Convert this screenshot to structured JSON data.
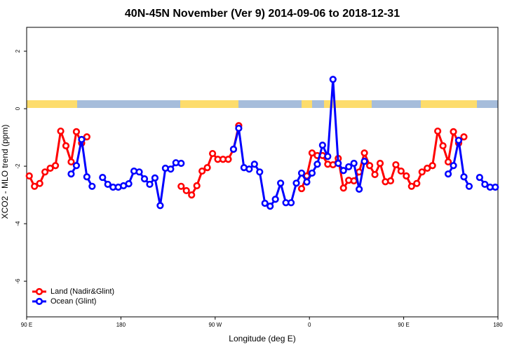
{
  "chart_data": {
    "type": "line",
    "title": "40N-45N November (Ver 9)   2014-09-06 to 2018-12-31",
    "x_label": "Longitude (deg E)",
    "y_label": "XCO2 - MLO trend (ppm)",
    "xlim": [
      90,
      540
    ],
    "ylim": [
      -7.24,
      2.83
    ],
    "xticks": [
      {
        "value": 90,
        "label": "90 E"
      },
      {
        "value": 180,
        "label": "180"
      },
      {
        "value": 270,
        "label": "90 W"
      },
      {
        "value": 360,
        "label": "0"
      },
      {
        "value": 450,
        "label": "90 E"
      },
      {
        "value": 540,
        "label": "180"
      }
    ],
    "yticks": [
      -6,
      -4,
      -2,
      0,
      2
    ],
    "legend": "bottom-left",
    "series": [
      {
        "name": "Land (Nadir&Glint)",
        "color": "#ff0000",
        "x": [
          92.5,
          97.5,
          102.5,
          107.5,
          112.5,
          117.5,
          122.5,
          127.5,
          132.5,
          137.5,
          142.5,
          147.5,
          152.5,
          237.5,
          242.5,
          247.5,
          252.5,
          257.5,
          262.5,
          267.5,
          272.5,
          277.5,
          282.5,
          287.5,
          292.5,
          297.5,
          352.5,
          357.5,
          362.5,
          367.5,
          372.5,
          377.5,
          382.5,
          387.5,
          392.5,
          397.5,
          402.5,
          407.5,
          412.5,
          417.5,
          422.5,
          427.5,
          432.5,
          437.5,
          442.5,
          447.5,
          452.5,
          457.5,
          462.5,
          467.5,
          472.5,
          477.5,
          482.5,
          487.5,
          492.5,
          497.5,
          502.5,
          507.5
        ],
        "values": [
          -2.34,
          -2.7,
          -2.6,
          -2.2,
          -2.07,
          -1.98,
          -0.78,
          -1.29,
          -1.85,
          -0.8,
          -1.2,
          -0.98,
          null,
          -2.7,
          -2.85,
          -3.0,
          -2.68,
          -2.17,
          -2.05,
          -1.56,
          -1.76,
          -1.76,
          -1.76,
          -1.41,
          -0.59,
          null,
          -2.78,
          -2.34,
          -1.54,
          -1.63,
          -1.63,
          -1.93,
          -1.95,
          -1.73,
          -2.76,
          -2.49,
          -2.51,
          -2.2,
          -1.54,
          -1.98,
          -2.29,
          -1.9,
          -2.54,
          -2.51,
          -1.95,
          -2.17,
          -2.34,
          -2.7,
          -2.6,
          -2.2,
          -2.07,
          -1.98,
          -0.78,
          -1.29,
          -1.85,
          -0.8,
          -1.2,
          -0.98
        ]
      },
      {
        "name": "Ocean (Glint)",
        "color": "#0000ff",
        "x": [
          132.5,
          137.5,
          142.5,
          147.5,
          152.5,
          157.5,
          162.5,
          167.5,
          172.5,
          177.5,
          182.5,
          187.5,
          192.5,
          197.5,
          202.5,
          207.5,
          212.5,
          217.5,
          222.5,
          227.5,
          232.5,
          237.5,
          242.5,
          287.5,
          292.5,
          297.5,
          302.5,
          307.5,
          312.5,
          317.5,
          322.5,
          327.5,
          332.5,
          337.5,
          342.5,
          347.5,
          352.5,
          357.5,
          362.5,
          367.5,
          372.5,
          377.5,
          382.5,
          387.5,
          392.5,
          397.5,
          402.5,
          407.5,
          412.5,
          417.5,
          492.5,
          497.5,
          502.5,
          507.5,
          512.5,
          517.5,
          522.5,
          527.5,
          532.5,
          537.5
        ],
        "values": [
          -2.27,
          -1.98,
          -1.07,
          -2.37,
          -2.7,
          null,
          -2.39,
          -2.63,
          -2.73,
          -2.73,
          -2.68,
          -2.61,
          -2.17,
          -2.2,
          -2.44,
          -2.63,
          -2.41,
          -3.37,
          -2.07,
          -2.1,
          -1.88,
          -1.9,
          null,
          -1.41,
          -0.68,
          -2.05,
          -2.1,
          -1.93,
          -2.2,
          -3.29,
          -3.39,
          -3.15,
          -2.59,
          -3.27,
          -3.27,
          -2.59,
          -2.24,
          -2.55,
          -2.24,
          -1.93,
          -1.27,
          -1.66,
          1.02,
          -1.9,
          -2.15,
          -2.02,
          -1.9,
          -2.8,
          -1.83,
          null,
          -2.27,
          -1.98,
          -1.1,
          -2.37,
          -2.7,
          null,
          -2.39,
          -2.63,
          -2.73,
          -2.73
        ]
      }
    ]
  }
}
